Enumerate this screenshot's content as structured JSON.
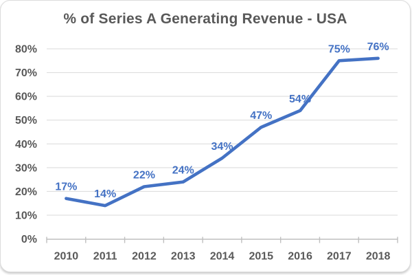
{
  "chart_data": {
    "type": "line",
    "title": "% of Series A Generating Revenue - USA",
    "categories": [
      "2010",
      "2011",
      "2012",
      "2013",
      "2014",
      "2015",
      "2016",
      "2017",
      "2018"
    ],
    "values": [
      17,
      14,
      22,
      24,
      34,
      47,
      54,
      75,
      76
    ],
    "data_labels": [
      "17%",
      "14%",
      "22%",
      "24%",
      "34%",
      "47%",
      "54%",
      "75%",
      "76%"
    ],
    "ytick_labels": [
      "0%",
      "10%",
      "20%",
      "30%",
      "40%",
      "50%",
      "60%",
      "70%",
      "80%"
    ],
    "ylim": [
      0,
      80
    ],
    "ytick_step": 10,
    "xlabel": "",
    "ylabel": "",
    "grid": true,
    "legend": "none",
    "colors": {
      "line": "#4472C4",
      "data_label": "#4472C4",
      "title": "#595959",
      "axis_label": "#595959",
      "gridline": "#D9D9D9",
      "axis_line": "#BFBFBF",
      "background": "#FFFFFF",
      "card_border": "#DCDCDC"
    }
  }
}
